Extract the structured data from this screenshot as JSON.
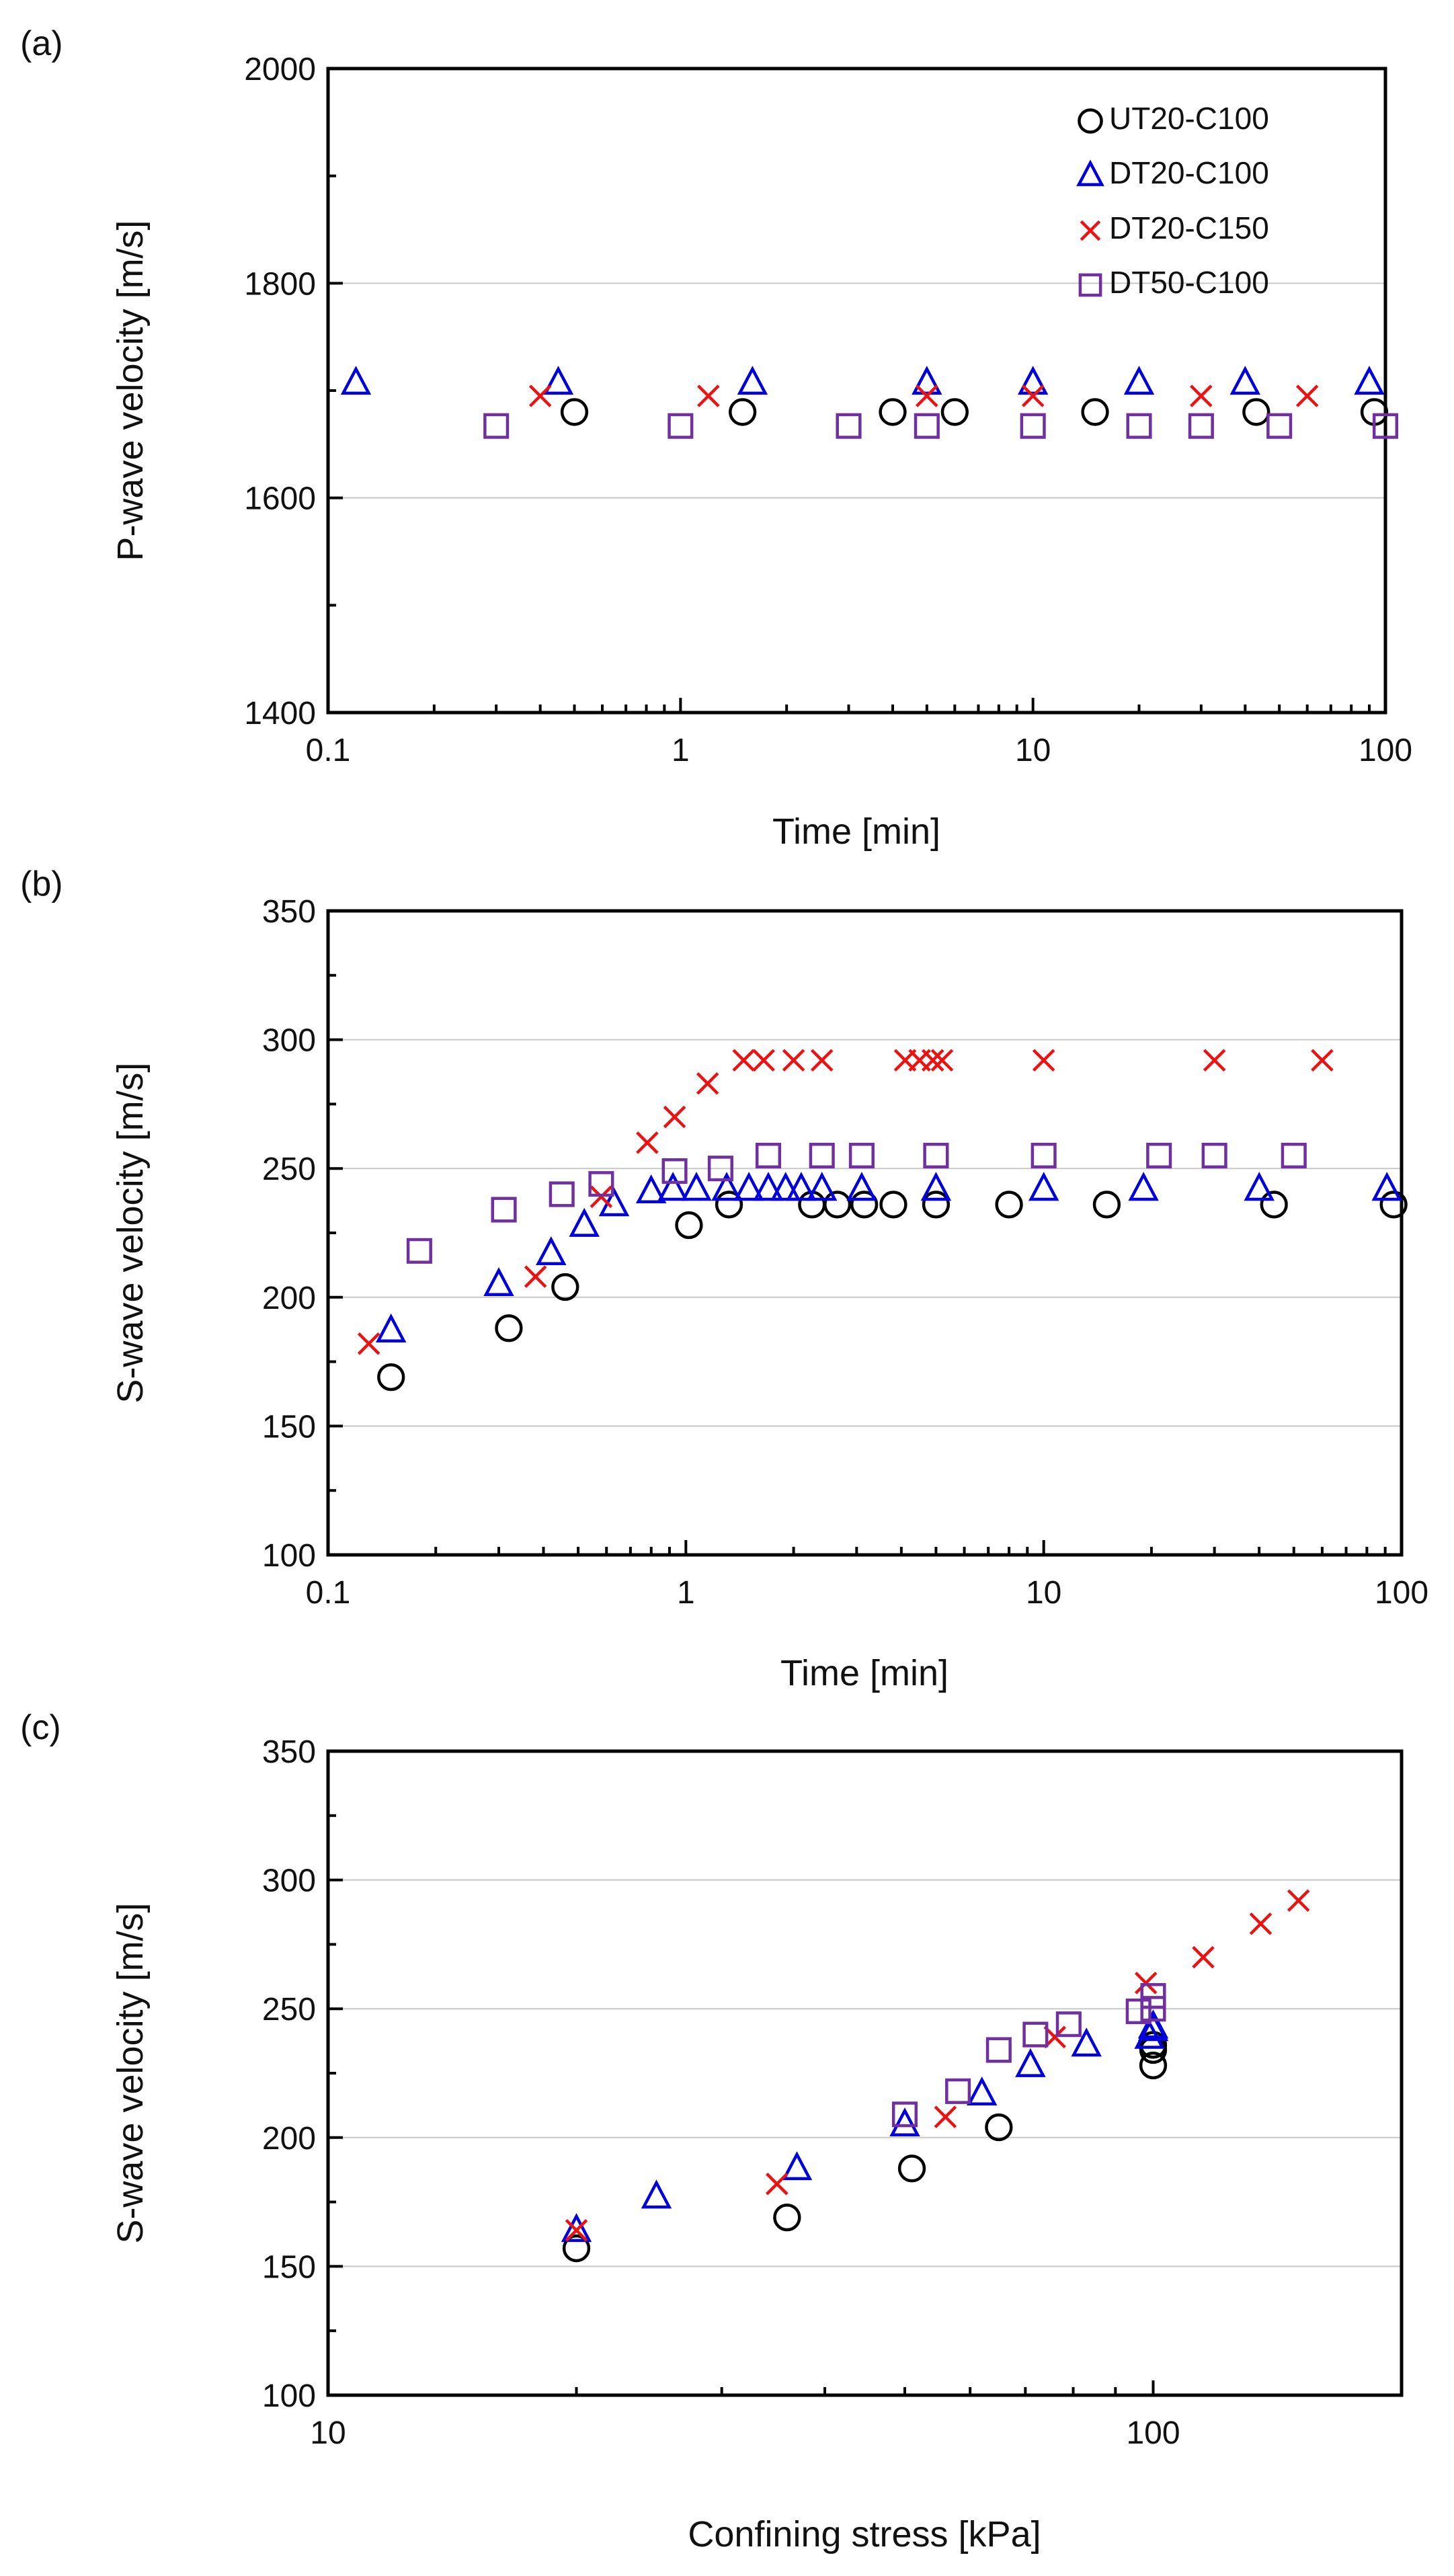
{
  "colors": {
    "UT20-C100": "#000000",
    "DT20-C100": "#0000dd",
    "DT20-C150": "#ee1111",
    "DT50-C100": "#7030a0"
  },
  "markers": {
    "UT20-C100": "circle",
    "DT20-C100": "triangle",
    "DT20-C150": "cross",
    "DT50-C100": "square"
  },
  "chart_data": [
    {
      "panel_label": "(a)",
      "type": "scatter",
      "xscale": "log",
      "xlabel": "Time [min]",
      "ylabel": "P-wave velocity [m/s]",
      "xlim": [
        0.1,
        100
      ],
      "ylim": [
        1400,
        2000
      ],
      "xticks": [
        0.1,
        1,
        10,
        100
      ],
      "xtick_labels": [
        "0.1",
        "1",
        "10",
        "100"
      ],
      "yticks": [
        1400,
        1600,
        1800,
        2000
      ],
      "ytick_labels": [
        "1400",
        "1600",
        "1800",
        "2000"
      ],
      "legend": {
        "placement": "top-right",
        "entries": [
          "UT20-C100",
          "DT20-C100",
          "DT20-C150",
          "DT50-C100"
        ]
      },
      "series": [
        {
          "name": "UT20-C100",
          "x": [
            0.5,
            1.5,
            4,
            6,
            15,
            43,
            93
          ],
          "y": [
            1680,
            1680,
            1680,
            1680,
            1680,
            1680,
            1680
          ]
        },
        {
          "name": "DT20-C100",
          "x": [
            0.12,
            0.45,
            1.6,
            5,
            10,
            20,
            40,
            90
          ],
          "y": [
            1707,
            1707,
            1707,
            1707,
            1707,
            1707,
            1707,
            1707
          ]
        },
        {
          "name": "DT20-C150",
          "x": [
            0.4,
            1.2,
            5,
            10,
            30,
            60
          ],
          "y": [
            1695,
            1695,
            1695,
            1695,
            1695,
            1695
          ]
        },
        {
          "name": "DT50-C100",
          "x": [
            0.3,
            1,
            3,
            5,
            10,
            20,
            30,
            50,
            100
          ],
          "y": [
            1667,
            1667,
            1667,
            1667,
            1667,
            1667,
            1667,
            1667,
            1667
          ]
        }
      ]
    },
    {
      "panel_label": "(b)",
      "type": "scatter",
      "xscale": "log",
      "xlabel": "Time [min]",
      "ylabel": "S-wave velocity [m/s]",
      "xlim": [
        0.1,
        100
      ],
      "ylim": [
        100,
        350
      ],
      "xticks": [
        0.1,
        1,
        10,
        100
      ],
      "xtick_labels": [
        "0.1",
        "1",
        "10",
        "100"
      ],
      "yticks": [
        100,
        150,
        200,
        250,
        300,
        350
      ],
      "ytick_labels": [
        "100",
        "150",
        "200",
        "250",
        "300",
        "350"
      ],
      "series": [
        {
          "name": "UT20-C100",
          "x": [
            0.15,
            0.32,
            0.46,
            1.02,
            1.32,
            2.25,
            2.65,
            3.15,
            3.8,
            5.0,
            8.0,
            15,
            44,
            95
          ],
          "y": [
            169,
            188,
            204,
            228,
            236,
            236,
            236,
            236,
            236,
            236,
            236,
            236,
            236,
            236
          ]
        },
        {
          "name": "DT20-C100",
          "x": [
            0.15,
            0.3,
            0.42,
            0.52,
            0.63,
            0.8,
            0.92,
            1.07,
            1.3,
            1.5,
            1.7,
            1.9,
            2.1,
            2.4,
            3.1,
            5.0,
            10,
            19,
            40,
            91
          ],
          "y": [
            187,
            205,
            217,
            228,
            236,
            241,
            242,
            242,
            242,
            242,
            242,
            242,
            242,
            242,
            242,
            242,
            242,
            242,
            242,
            242
          ]
        },
        {
          "name": "DT20-C150",
          "x": [
            0.13,
            0.38,
            0.58,
            0.78,
            0.93,
            1.15,
            1.45,
            1.65,
            2.0,
            2.4,
            4.1,
            4.5,
            4.9,
            5.2,
            10,
            30,
            60
          ],
          "y": [
            182,
            208,
            239,
            260,
            270,
            283,
            292,
            292,
            292,
            292,
            292,
            292,
            292,
            292,
            292,
            292,
            292
          ]
        },
        {
          "name": "DT50-C100",
          "x": [
            0.18,
            0.31,
            0.45,
            0.58,
            0.93,
            1.25,
            1.7,
            2.4,
            3.1,
            5.0,
            10,
            21,
            30,
            50
          ],
          "y": [
            218,
            234,
            240,
            244,
            249,
            250,
            255,
            255,
            255,
            255,
            255,
            255,
            255,
            255
          ]
        }
      ]
    },
    {
      "panel_label": "(c)",
      "type": "scatter",
      "xscale": "log",
      "xlabel": "Confining stress [kPa]",
      "ylabel": "S-wave velocity [m/s]",
      "xlim": [
        10,
        200
      ],
      "ylim": [
        100,
        350
      ],
      "xticks": [
        10,
        100
      ],
      "xtick_labels": [
        "10",
        "100"
      ],
      "yticks": [
        100,
        150,
        200,
        250,
        300,
        350
      ],
      "ytick_labels": [
        "100",
        "150",
        "200",
        "250",
        "300",
        "350"
      ],
      "series": [
        {
          "name": "UT20-C100",
          "x": [
            20,
            36,
            51,
            65,
            100,
            100,
            100
          ],
          "y": [
            157,
            169,
            188,
            204,
            228,
            234,
            236
          ]
        },
        {
          "name": "DT20-C100",
          "x": [
            20,
            25,
            37,
            50,
            62,
            71,
            83,
            99,
            100,
            100
          ],
          "y": [
            164,
            177,
            188,
            205,
            217,
            228,
            236,
            239,
            242,
            243
          ]
        },
        {
          "name": "DT20-C150",
          "x": [
            20,
            35,
            56,
            76,
            98,
            115,
            135,
            150
          ],
          "y": [
            164,
            182,
            208,
            239,
            260,
            270,
            283,
            292
          ]
        },
        {
          "name": "DT50-C100",
          "x": [
            50,
            58,
            65,
            72,
            79,
            96,
            100,
            100
          ],
          "y": [
            209,
            218,
            234,
            240,
            244,
            249,
            250,
            255
          ]
        }
      ]
    }
  ]
}
